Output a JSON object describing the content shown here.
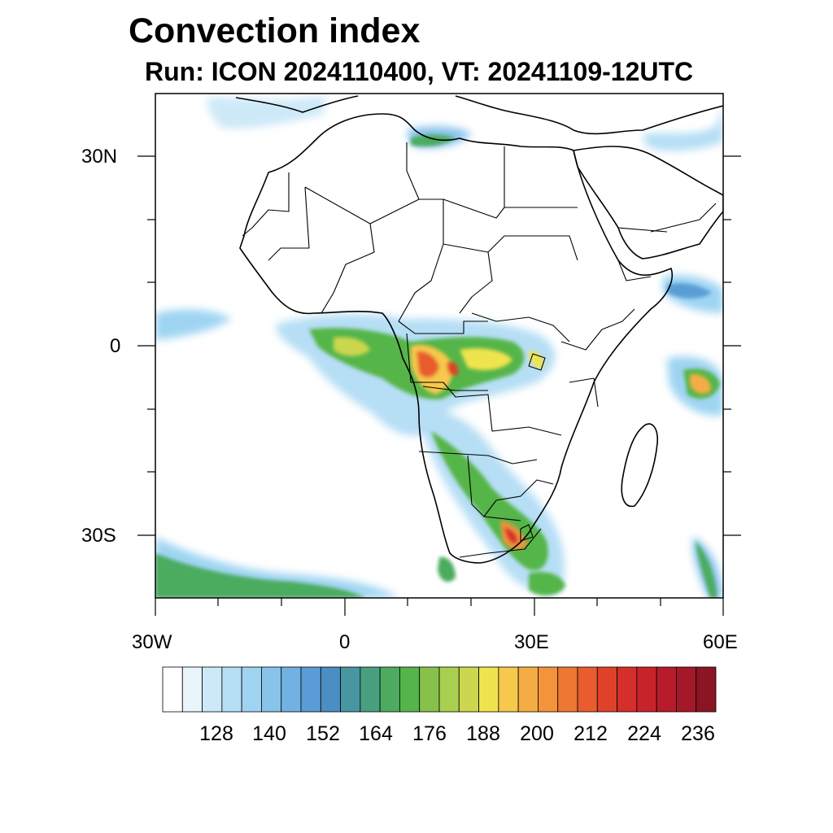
{
  "title": "Convection index",
  "subtitle": "Run: ICON 2024110400,  VT: 20241109-12UTC",
  "axes": {
    "x_labels": [
      "30W",
      "0",
      "30E",
      "60E"
    ],
    "y_labels": [
      "30N",
      "0",
      "30S"
    ]
  },
  "colorbar": {
    "labels": [
      "128",
      "140",
      "152",
      "164",
      "176",
      "188",
      "200",
      "212",
      "224",
      "236"
    ],
    "colors": [
      "#ffffff",
      "#e9f5fb",
      "#cde9f8",
      "#b6def5",
      "#9ed4f2",
      "#88c3ea",
      "#72b2e2",
      "#5a9dd6",
      "#4a8ec3",
      "#4796a2",
      "#48a07e",
      "#4cab5f",
      "#55b54a",
      "#86c24b",
      "#a9cf4e",
      "#cbd74e",
      "#f0e44e",
      "#f6c84c",
      "#f4ad45",
      "#f3933c",
      "#ed7733",
      "#e85c2d",
      "#df4228",
      "#d62e2a",
      "#c8232b",
      "#b71c2b",
      "#a5182a",
      "#8b1425"
    ]
  },
  "chart_data": {
    "type": "map-contour",
    "title": "Convection index",
    "subtitle": "Run: ICON 2024110400,  VT: 20241109-12UTC",
    "lon_range": [
      -30,
      60
    ],
    "lat_range": [
      -40,
      40
    ],
    "lon_ticks": [
      -30,
      0,
      30,
      60
    ],
    "lat_ticks": [
      30,
      0,
      -30
    ],
    "colorbar_levels": [
      128,
      140,
      152,
      164,
      176,
      188,
      200,
      212,
      224,
      236
    ],
    "features": [
      {
        "region": "Congo Basin / Central Africa",
        "max_level": 224
      },
      {
        "region": "Gulf of Guinea / Atlantic band",
        "max_level": 188
      },
      {
        "region": "Southern Africa (Zimbabwe to South Africa)",
        "max_level": 212
      },
      {
        "region": "Indian Ocean near Madagascar",
        "max_level": 200
      },
      {
        "region": "South Atlantic (southwest corner)",
        "max_level": 176
      },
      {
        "region": "Mediterranean / Libya coast",
        "max_level": 164
      }
    ]
  }
}
